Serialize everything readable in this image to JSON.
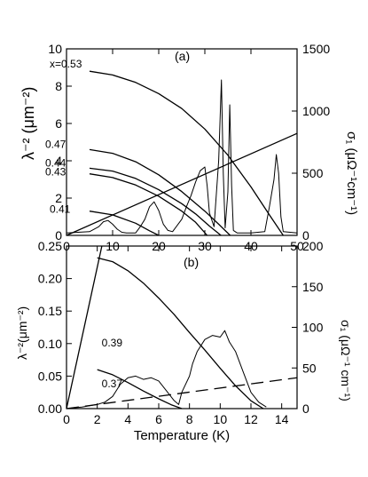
{
  "chart_data": [
    {
      "panel_label": "(a)",
      "type": "line",
      "xlabel": "",
      "ylabel_left": "λ⁻² (μm⁻²)",
      "ylabel_right": "σ₁ (μΩ⁻¹cm⁻¹)",
      "xlim": [
        0,
        50
      ],
      "ylim_left": [
        0,
        10
      ],
      "ylim_right": [
        0,
        1500
      ],
      "xticks": [
        0,
        10,
        20,
        30,
        40,
        50
      ],
      "yticks_left": [
        0,
        2,
        4,
        6,
        8,
        10
      ],
      "yticks_right": [
        0,
        500,
        1000,
        1500
      ],
      "grid": false,
      "lambda_series": [
        {
          "name": "x=0.53",
          "label": "x=0.53",
          "x": [
            5,
            10,
            15,
            20,
            25,
            30,
            35,
            40,
            44,
            47
          ],
          "y": [
            8.8,
            8.6,
            8.2,
            7.6,
            6.8,
            5.7,
            4.3,
            2.6,
            1.1,
            0.0
          ]
        },
        {
          "name": "0.47",
          "label": "0.47",
          "x": [
            5,
            10,
            15,
            20,
            25,
            30,
            33,
            35.5
          ],
          "y": [
            4.6,
            4.4,
            3.95,
            3.25,
            2.35,
            1.3,
            0.6,
            0.0
          ]
        },
        {
          "name": "0.44",
          "label": "0.44",
          "x": [
            5,
            10,
            15,
            20,
            25,
            28,
            31,
            33.5
          ],
          "y": [
            3.6,
            3.45,
            3.05,
            2.45,
            1.7,
            1.15,
            0.5,
            0.0
          ]
        },
        {
          "name": "0.43",
          "label": "0.43",
          "x": [
            5,
            10,
            15,
            20,
            25,
            28,
            30.5
          ],
          "y": [
            3.3,
            3.1,
            2.7,
            2.1,
            1.3,
            0.7,
            0.0
          ]
        },
        {
          "name": "0.41",
          "label": "0.41",
          "x": [
            5,
            10,
            15,
            18,
            20
          ],
          "y": [
            1.3,
            1.1,
            0.65,
            0.25,
            0.0
          ]
        }
      ],
      "sigma_series": [
        {
          "x": [
            0,
            5,
            7,
            8,
            9,
            10,
            11,
            12,
            13,
            15,
            16,
            17,
            18,
            19,
            20,
            21,
            22,
            23,
            25,
            26,
            27,
            28,
            29,
            30,
            30.5,
            31,
            32,
            33,
            33.6,
            34,
            34.4,
            35,
            35.4,
            35.8,
            36.2,
            37,
            40,
            43,
            44,
            45,
            45.5,
            46,
            46.5,
            47,
            50
          ],
          "y": [
            20,
            30,
            70,
            110,
            120,
            90,
            50,
            25,
            20,
            20,
            70,
            130,
            230,
            270,
            200,
            90,
            40,
            30,
            130,
            230,
            320,
            430,
            520,
            550,
            400,
            180,
            70,
            600,
            1250,
            500,
            60,
            350,
            1050,
            400,
            40,
            20,
            20,
            30,
            230,
            450,
            650,
            500,
            150,
            30,
            20
          ]
        }
      ],
      "straight_line": {
        "x": [
          0,
          50
        ],
        "y_right": [
          0,
          820
        ]
      }
    },
    {
      "panel_label": "(b)",
      "type": "line",
      "xlabel": "Temperature (K)",
      "ylabel_left": "λ⁻²(μm⁻²)",
      "ylabel_right": "σ₁ (μΩ⁻¹ cm⁻¹)",
      "xlim": [
        0,
        15
      ],
      "ylim_left": [
        0,
        0.25
      ],
      "ylim_right": [
        0,
        200
      ],
      "xticks": [
        0,
        2,
        4,
        6,
        8,
        10,
        12,
        14
      ],
      "yticks_left": [
        0.0,
        0.05,
        0.1,
        0.15,
        0.2,
        0.25
      ],
      "yticks_right": [
        0,
        50,
        100,
        150,
        200
      ],
      "grid": false,
      "lambda_series": [
        {
          "name": "0.39",
          "label": "0.39",
          "x": [
            2,
            3,
            4,
            5,
            6,
            7,
            8,
            9,
            10,
            11,
            12,
            12.8
          ],
          "y": [
            0.232,
            0.226,
            0.212,
            0.193,
            0.17,
            0.145,
            0.117,
            0.09,
            0.062,
            0.035,
            0.012,
            0.0
          ]
        },
        {
          "name": "0.37",
          "label": "0.37",
          "x": [
            2,
            3,
            4,
            5,
            6,
            6.8,
            7.5
          ],
          "y": [
            0.06,
            0.052,
            0.04,
            0.027,
            0.015,
            0.006,
            0.0
          ]
        }
      ],
      "sigma_series": [
        {
          "x": [
            0,
            1,
            2,
            2.5,
            3,
            3.5,
            4,
            4.5,
            5,
            5.5,
            6,
            6.5,
            7,
            7.3,
            7.5,
            8,
            8.2,
            8.5,
            9,
            9.5,
            10,
            10.3,
            10.6,
            11,
            11.5,
            12,
            12.5,
            13
          ],
          "y": [
            0,
            2,
            5,
            8,
            15,
            30,
            38,
            40,
            36,
            38,
            34,
            22,
            10,
            5,
            20,
            40,
            55,
            70,
            85,
            90,
            88,
            96,
            82,
            70,
            45,
            20,
            8,
            2
          ]
        }
      ],
      "straight_lines": [
        {
          "style": "solid",
          "x": [
            0,
            2.3
          ],
          "y_right": [
            0,
            200
          ]
        },
        {
          "style": "dashed",
          "x": [
            0,
            15
          ],
          "y_right": [
            0,
            38
          ]
        }
      ]
    }
  ]
}
